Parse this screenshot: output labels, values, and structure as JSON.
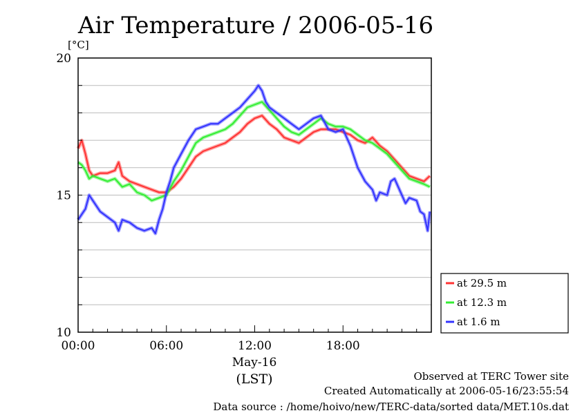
{
  "chart_data": {
    "type": "line",
    "title": "Air Temperature / 2006-05-16",
    "ylabel": "[°C]",
    "xlabel": "(LST)",
    "date_label": "May-16",
    "ylim": [
      10,
      20
    ],
    "xlim": [
      0,
      24
    ],
    "yticks": [
      {
        "value": 10,
        "label": "10"
      },
      {
        "value": 15,
        "label": "15"
      },
      {
        "value": 20,
        "label": "20"
      }
    ],
    "xticks": [
      {
        "value": 0,
        "label": "00:00"
      },
      {
        "value": 6,
        "label": "06:00"
      },
      {
        "value": 12,
        "label": "12:00"
      },
      {
        "value": 18,
        "label": "18:00"
      }
    ],
    "grid": true,
    "legend_position": "right",
    "series": [
      {
        "name": "at 29.5 m",
        "color": "#ff3333",
        "x": [
          0.0,
          0.25,
          0.5,
          0.75,
          1.0,
          1.5,
          2.0,
          2.5,
          2.75,
          3.0,
          3.5,
          4.0,
          4.5,
          5.0,
          5.5,
          6.0,
          6.5,
          7.0,
          7.5,
          8.0,
          8.5,
          9.0,
          9.5,
          10.0,
          10.5,
          11.0,
          11.5,
          12.0,
          12.5,
          13.0,
          13.5,
          14.0,
          14.5,
          15.0,
          15.5,
          16.0,
          16.5,
          17.0,
          17.5,
          18.0,
          18.5,
          19.0,
          19.5,
          20.0,
          20.5,
          21.0,
          21.5,
          22.0,
          22.5,
          23.0,
          23.5,
          23.9
        ],
        "values": [
          16.7,
          17.0,
          16.5,
          15.9,
          15.7,
          15.8,
          15.8,
          15.9,
          16.2,
          15.7,
          15.5,
          15.4,
          15.3,
          15.2,
          15.1,
          15.1,
          15.3,
          15.6,
          16.0,
          16.4,
          16.6,
          16.7,
          16.8,
          16.9,
          17.1,
          17.3,
          17.6,
          17.8,
          17.9,
          17.6,
          17.4,
          17.1,
          17.0,
          16.9,
          17.1,
          17.3,
          17.4,
          17.4,
          17.4,
          17.3,
          17.2,
          17.0,
          16.9,
          17.1,
          16.8,
          16.6,
          16.3,
          16.0,
          15.7,
          15.6,
          15.5,
          15.7
        ]
      },
      {
        "name": "at 12.3 m",
        "color": "#33ee33",
        "x": [
          0.0,
          0.25,
          0.5,
          0.75,
          1.0,
          1.5,
          2.0,
          2.5,
          3.0,
          3.5,
          4.0,
          4.5,
          5.0,
          5.5,
          6.0,
          6.5,
          7.0,
          7.5,
          8.0,
          8.5,
          9.0,
          9.5,
          10.0,
          10.5,
          11.0,
          11.5,
          12.0,
          12.5,
          13.0,
          13.5,
          14.0,
          14.5,
          15.0,
          15.5,
          16.0,
          16.5,
          17.0,
          17.5,
          18.0,
          18.5,
          19.0,
          19.5,
          20.0,
          20.5,
          21.0,
          21.5,
          22.0,
          22.5,
          23.0,
          23.5,
          23.9
        ],
        "values": [
          16.2,
          16.1,
          15.9,
          15.6,
          15.7,
          15.6,
          15.5,
          15.6,
          15.3,
          15.4,
          15.1,
          15.0,
          14.8,
          14.9,
          15.0,
          15.5,
          15.9,
          16.4,
          16.9,
          17.1,
          17.2,
          17.3,
          17.4,
          17.6,
          17.9,
          18.2,
          18.3,
          18.4,
          18.1,
          17.8,
          17.5,
          17.3,
          17.2,
          17.4,
          17.6,
          17.8,
          17.6,
          17.5,
          17.5,
          17.4,
          17.2,
          17.0,
          16.9,
          16.7,
          16.5,
          16.2,
          15.9,
          15.6,
          15.5,
          15.4,
          15.3
        ]
      },
      {
        "name": "at 1.6 m",
        "color": "#3333ff",
        "x": [
          0.0,
          0.25,
          0.5,
          0.75,
          1.0,
          1.5,
          2.0,
          2.5,
          2.75,
          3.0,
          3.5,
          4.0,
          4.5,
          5.0,
          5.25,
          5.5,
          5.75,
          6.0,
          6.25,
          6.5,
          7.0,
          7.5,
          8.0,
          8.5,
          9.0,
          9.5,
          10.0,
          10.5,
          11.0,
          11.5,
          12.0,
          12.25,
          12.5,
          12.75,
          13.0,
          13.5,
          14.0,
          14.5,
          15.0,
          15.5,
          16.0,
          16.5,
          17.0,
          17.5,
          18.0,
          18.25,
          18.5,
          19.0,
          19.5,
          20.0,
          20.25,
          20.5,
          21.0,
          21.25,
          21.5,
          22.0,
          22.25,
          22.5,
          23.0,
          23.25,
          23.5,
          23.75,
          23.9
        ],
        "values": [
          14.1,
          14.3,
          14.5,
          15.0,
          14.8,
          14.4,
          14.2,
          14.0,
          13.7,
          14.1,
          14.0,
          13.8,
          13.7,
          13.8,
          13.6,
          14.1,
          14.5,
          15.1,
          15.5,
          16.0,
          16.5,
          17.0,
          17.4,
          17.5,
          17.6,
          17.6,
          17.8,
          18.0,
          18.2,
          18.5,
          18.8,
          19.0,
          18.8,
          18.4,
          18.2,
          18.0,
          17.8,
          17.6,
          17.4,
          17.6,
          17.8,
          17.9,
          17.4,
          17.3,
          17.4,
          17.1,
          16.8,
          16.0,
          15.5,
          15.2,
          14.8,
          15.1,
          15.0,
          15.5,
          15.6,
          15.0,
          14.7,
          14.9,
          14.8,
          14.4,
          14.3,
          13.7,
          14.4
        ]
      }
    ]
  },
  "footer": {
    "site": "Observed at TERC Tower site",
    "created": "Created Automatically at 2006-05-16/23:55:54",
    "source": "Data source : /home/hoivo/new/TERC-data/sorted  data/MET.10s.dat"
  }
}
